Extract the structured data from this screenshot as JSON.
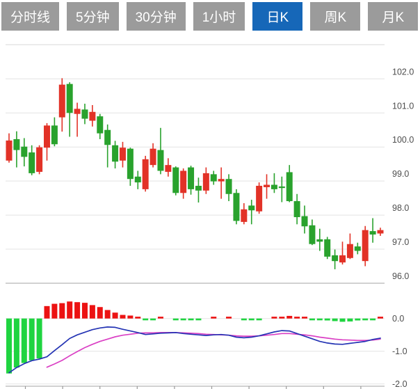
{
  "tabs": [
    {
      "label": "分时线",
      "active": false
    },
    {
      "label": "5分钟",
      "active": false
    },
    {
      "label": "30分钟",
      "active": false
    },
    {
      "label": "1小时",
      "active": false
    },
    {
      "label": "日K",
      "active": true
    },
    {
      "label": "周K",
      "active": false
    },
    {
      "label": "月K",
      "active": false
    }
  ],
  "colors": {
    "tab_bg": "#9b9b9b",
    "tab_active_bg": "#1667b8",
    "tab_text": "#ffffff",
    "candle_up": "#e23227",
    "candle_down": "#29a22d",
    "hist_up": "#ec1212",
    "hist_down": "#1fd440",
    "dif_line": "#2434b4",
    "dea_line": "#da3fc4",
    "grid": "#e3e3e3",
    "axis": "#c2c2c2",
    "tick": "#999999",
    "label": "#4d4d4d"
  },
  "chart_data": {
    "type": "candlestick",
    "panes": [
      {
        "type": "candlestick",
        "ylim": [
          96,
          103.1
        ],
        "yticks": [
          102,
          101,
          100,
          99,
          98,
          97,
          96
        ],
        "ytick_labels": [
          "102.0",
          "101.0",
          "100.0",
          "99.0",
          "98.0",
          "97.0",
          "96.0"
        ],
        "grid": true,
        "candles_ohlc": [
          [
            99.6,
            100.4,
            99.54,
            100.19
          ],
          [
            100.23,
            100.46,
            99.4,
            99.91
          ],
          [
            100.01,
            100.26,
            99.43,
            99.71
          ],
          [
            99.84,
            100.05,
            99.17,
            99.23
          ],
          [
            99.27,
            100.05,
            99.2,
            99.99
          ],
          [
            99.98,
            100.7,
            99.6,
            100.63
          ],
          [
            100.63,
            100.87,
            100.02,
            100.08
          ],
          [
            100.87,
            102.02,
            100.45,
            101.83
          ],
          [
            101.85,
            101.9,
            100.3,
            101.0
          ],
          [
            100.97,
            101.3,
            100.3,
            101.12
          ],
          [
            101.1,
            101.27,
            100.67,
            100.83
          ],
          [
            100.77,
            101.23,
            100.6,
            101.03
          ],
          [
            100.9,
            100.97,
            100.23,
            100.4
          ],
          [
            100.5,
            100.66,
            99.4,
            100.06
          ],
          [
            100.05,
            100.18,
            99.37,
            99.57
          ],
          [
            99.6,
            100.15,
            99.4,
            99.98
          ],
          [
            99.95,
            99.98,
            98.86,
            99.06
          ],
          [
            99.13,
            99.3,
            98.76,
            98.96
          ],
          [
            98.76,
            99.74,
            98.69,
            99.64
          ],
          [
            99.47,
            100.11,
            99.4,
            99.95
          ],
          [
            99.91,
            100.56,
            99.2,
            99.3
          ],
          [
            99.27,
            99.67,
            99.13,
            99.47
          ],
          [
            99.4,
            99.43,
            98.58,
            98.65
          ],
          [
            98.65,
            99.37,
            98.48,
            99.3
          ],
          [
            99.4,
            99.45,
            98.6,
            98.76
          ],
          [
            98.86,
            99.1,
            98.37,
            98.72
          ],
          [
            98.72,
            99.4,
            98.62,
            99.23
          ],
          [
            99.2,
            99.3,
            98.89,
            98.99
          ],
          [
            98.99,
            99.4,
            98.48,
            99.06
          ],
          [
            99.06,
            99.2,
            98.41,
            98.62
          ],
          [
            98.65,
            98.76,
            97.73,
            97.83
          ],
          [
            97.8,
            98.35,
            97.73,
            98.17
          ],
          [
            98.28,
            98.45,
            97.73,
            98.14
          ],
          [
            98.11,
            98.96,
            98.04,
            98.86
          ],
          [
            98.82,
            99.2,
            98.48,
            98.89
          ],
          [
            98.89,
            99.23,
            98.65,
            98.76
          ],
          [
            98.84,
            99.13,
            98.38,
            98.8
          ],
          [
            99.26,
            99.47,
            98.38,
            98.41
          ],
          [
            98.41,
            98.62,
            97.73,
            97.94
          ],
          [
            97.97,
            98.28,
            97.46,
            97.67
          ],
          [
            97.7,
            97.87,
            97.12,
            97.15
          ],
          [
            97.29,
            97.6,
            96.95,
            97.22
          ],
          [
            97.29,
            97.36,
            96.71,
            96.78
          ],
          [
            96.82,
            96.99,
            96.41,
            96.65
          ],
          [
            96.61,
            97.22,
            96.55,
            96.82
          ],
          [
            96.74,
            97.46,
            96.71,
            97.15
          ],
          [
            97.08,
            97.19,
            96.85,
            96.95
          ],
          [
            96.65,
            97.68,
            96.5,
            97.56
          ],
          [
            97.53,
            97.91,
            97.19,
            97.43
          ],
          [
            97.46,
            97.63,
            97.39,
            97.56
          ]
        ]
      },
      {
        "type": "macd",
        "ylim": [
          -2.1,
          0.6
        ],
        "yticks": [
          0,
          -1,
          -2
        ],
        "ytick_labels": [
          "0.0",
          "-1.0",
          "-2.0"
        ],
        "grid": true,
        "histogram": [
          -1.68,
          -1.5,
          -1.36,
          -1.28,
          -1.22,
          0.38,
          0.45,
          0.47,
          0.52,
          0.5,
          0.48,
          0.41,
          0.35,
          0.26,
          0.18,
          0.11,
          0.09,
          0.02,
          -0.02,
          -0.03,
          0.01,
          0.0,
          -0.02,
          -0.03,
          -0.03,
          -0.03,
          0.0,
          0.02,
          0.0,
          0.02,
          0.0,
          -0.05,
          -0.04,
          -0.04,
          0.0,
          0.03,
          0.05,
          0.08,
          0.05,
          0.02,
          -0.02,
          -0.04,
          -0.06,
          -0.08,
          -0.1,
          -0.09,
          -0.06,
          -0.05,
          -0.02,
          0.02
        ],
        "dif": [
          -1.66,
          -1.5,
          -1.38,
          -1.29,
          -1.24,
          -1.17,
          -0.98,
          -0.8,
          -0.61,
          -0.5,
          -0.42,
          -0.34,
          -0.29,
          -0.26,
          -0.27,
          -0.33,
          -0.38,
          -0.43,
          -0.49,
          -0.47,
          -0.45,
          -0.44,
          -0.43,
          -0.46,
          -0.48,
          -0.5,
          -0.52,
          -0.5,
          -0.49,
          -0.51,
          -0.57,
          -0.59,
          -0.57,
          -0.53,
          -0.47,
          -0.41,
          -0.37,
          -0.38,
          -0.46,
          -0.54,
          -0.62,
          -0.7,
          -0.75,
          -0.78,
          -0.79,
          -0.76,
          -0.73,
          -0.7,
          -0.64,
          -0.6
        ],
        "dea": [
          null,
          null,
          null,
          null,
          null,
          -1.49,
          -1.39,
          -1.28,
          -1.14,
          -1.01,
          -0.89,
          -0.79,
          -0.7,
          -0.63,
          -0.56,
          -0.51,
          -0.48,
          -0.45,
          -0.44,
          -0.44,
          -0.43,
          -0.43,
          -0.43,
          -0.44,
          -0.45,
          -0.46,
          -0.48,
          -0.49,
          -0.5,
          -0.51,
          -0.53,
          -0.54,
          -0.54,
          -0.53,
          -0.51,
          -0.49,
          -0.46,
          -0.46,
          -0.48,
          -0.5,
          -0.53,
          -0.57,
          -0.6,
          -0.63,
          -0.65,
          -0.66,
          -0.67,
          -0.67,
          -0.66,
          -0.63
        ]
      }
    ]
  }
}
